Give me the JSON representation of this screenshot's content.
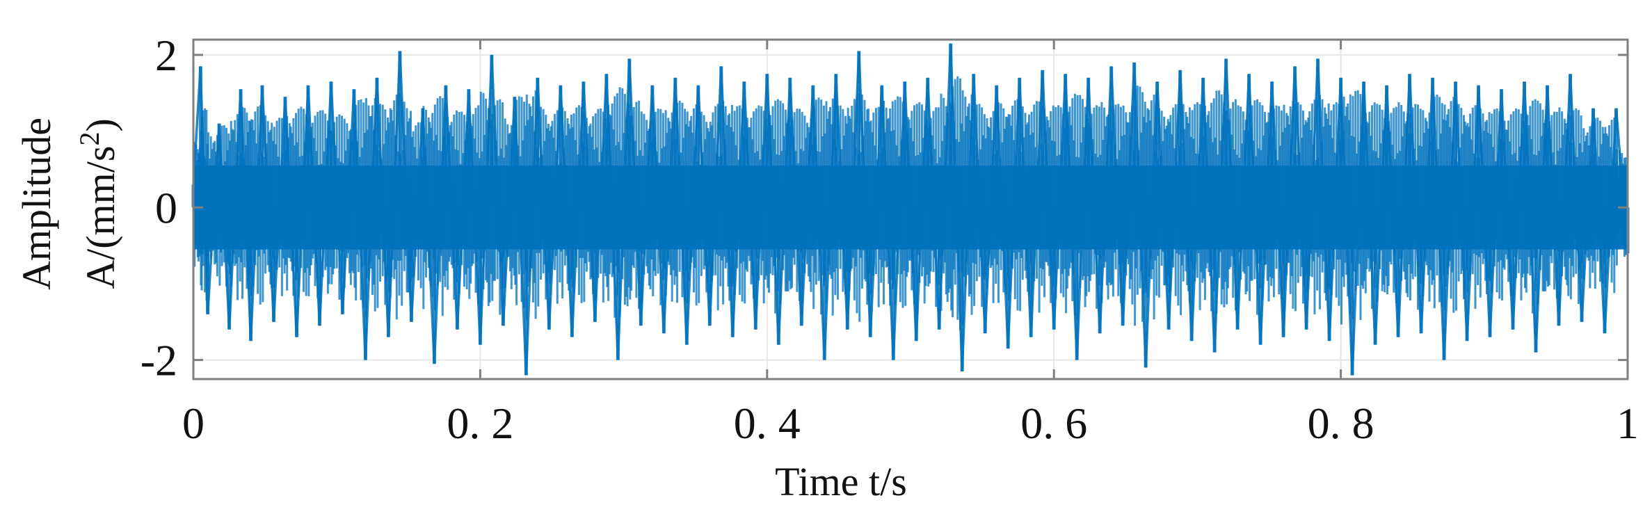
{
  "chart_data": {
    "type": "line",
    "title": "",
    "xlabel": "Time t/s",
    "ylabel_line1": "Amplitude",
    "ylabel_line2_prefix": "A/(mm/s",
    "ylabel_line2_sup": "2",
    "ylabel_line2_suffix": ")",
    "xlim": [
      0,
      1
    ],
    "ylim": [
      -2.25,
      2.2
    ],
    "x_ticks": [
      {
        "value": 0,
        "label": "0"
      },
      {
        "value": 0.2,
        "label": "0. 2"
      },
      {
        "value": 0.4,
        "label": "0. 4"
      },
      {
        "value": 0.6,
        "label": "0. 6"
      },
      {
        "value": 0.8,
        "label": "0. 8"
      },
      {
        "value": 1,
        "label": "1"
      }
    ],
    "y_ticks": [
      {
        "value": -2,
        "label": "-2"
      },
      {
        "value": 0,
        "label": "0"
      },
      {
        "value": 2,
        "label": "2"
      }
    ],
    "grid": true,
    "legend": "none",
    "series": [
      {
        "color": "#0072BD",
        "description_in_data_units": "vibration acceleration signal oscillating around 0 with impulsive peaks reaching about ±2.1",
        "points": [
          [
            0.0,
            0.3
          ],
          [
            0.005,
            1.85
          ],
          [
            0.01,
            -1.4
          ],
          [
            0.018,
            1.1
          ],
          [
            0.025,
            -1.6
          ],
          [
            0.033,
            1.55
          ],
          [
            0.04,
            -1.75
          ],
          [
            0.048,
            1.6
          ],
          [
            0.056,
            -1.5
          ],
          [
            0.064,
            1.45
          ],
          [
            0.072,
            -1.7
          ],
          [
            0.08,
            1.6
          ],
          [
            0.088,
            -1.55
          ],
          [
            0.096,
            1.65
          ],
          [
            0.104,
            -1.4
          ],
          [
            0.112,
            1.55
          ],
          [
            0.12,
            -2.0
          ],
          [
            0.128,
            1.7
          ],
          [
            0.136,
            -1.7
          ],
          [
            0.144,
            2.05
          ],
          [
            0.152,
            -1.5
          ],
          [
            0.16,
            1.3
          ],
          [
            0.168,
            -2.05
          ],
          [
            0.176,
            1.6
          ],
          [
            0.184,
            -1.6
          ],
          [
            0.192,
            1.55
          ],
          [
            0.2,
            -1.8
          ],
          [
            0.208,
            2.0
          ],
          [
            0.216,
            -1.55
          ],
          [
            0.224,
            1.45
          ],
          [
            0.232,
            -2.2
          ],
          [
            0.24,
            1.7
          ],
          [
            0.248,
            -1.6
          ],
          [
            0.256,
            1.6
          ],
          [
            0.264,
            -1.7
          ],
          [
            0.272,
            1.65
          ],
          [
            0.28,
            -1.5
          ],
          [
            0.288,
            1.75
          ],
          [
            0.296,
            -2.0
          ],
          [
            0.304,
            1.95
          ],
          [
            0.312,
            -1.55
          ],
          [
            0.32,
            1.6
          ],
          [
            0.328,
            -1.65
          ],
          [
            0.336,
            1.7
          ],
          [
            0.344,
            -1.8
          ],
          [
            0.352,
            1.6
          ],
          [
            0.36,
            -1.55
          ],
          [
            0.368,
            1.85
          ],
          [
            0.376,
            -1.7
          ],
          [
            0.384,
            1.65
          ],
          [
            0.392,
            -1.6
          ],
          [
            0.4,
            1.75
          ],
          [
            0.408,
            -1.8
          ],
          [
            0.416,
            1.7
          ],
          [
            0.424,
            -1.55
          ],
          [
            0.432,
            1.6
          ],
          [
            0.44,
            -2.0
          ],
          [
            0.448,
            1.75
          ],
          [
            0.456,
            -1.6
          ],
          [
            0.464,
            2.05
          ],
          [
            0.472,
            -1.7
          ],
          [
            0.48,
            1.6
          ],
          [
            0.488,
            -2.0
          ],
          [
            0.496,
            1.65
          ],
          [
            0.504,
            -1.75
          ],
          [
            0.512,
            1.7
          ],
          [
            0.52,
            -1.6
          ],
          [
            0.528,
            2.15
          ],
          [
            0.536,
            -2.15
          ],
          [
            0.544,
            1.75
          ],
          [
            0.552,
            -1.65
          ],
          [
            0.56,
            1.6
          ],
          [
            0.568,
            -1.85
          ],
          [
            0.576,
            1.7
          ],
          [
            0.584,
            -1.7
          ],
          [
            0.592,
            1.8
          ],
          [
            0.6,
            -1.6
          ],
          [
            0.608,
            1.75
          ],
          [
            0.616,
            -2.0
          ],
          [
            0.624,
            1.7
          ],
          [
            0.632,
            -1.65
          ],
          [
            0.64,
            1.85
          ],
          [
            0.648,
            -1.55
          ],
          [
            0.656,
            1.9
          ],
          [
            0.664,
            -2.1
          ],
          [
            0.672,
            1.65
          ],
          [
            0.68,
            -1.6
          ],
          [
            0.688,
            1.8
          ],
          [
            0.696,
            -1.75
          ],
          [
            0.704,
            1.7
          ],
          [
            0.712,
            -1.9
          ],
          [
            0.72,
            1.95
          ],
          [
            0.728,
            -1.6
          ],
          [
            0.736,
            1.75
          ],
          [
            0.744,
            -1.8
          ],
          [
            0.752,
            1.65
          ],
          [
            0.76,
            -1.7
          ],
          [
            0.768,
            1.85
          ],
          [
            0.776,
            -1.6
          ],
          [
            0.784,
            1.95
          ],
          [
            0.792,
            -1.75
          ],
          [
            0.8,
            1.7
          ],
          [
            0.808,
            -2.2
          ],
          [
            0.816,
            1.65
          ],
          [
            0.824,
            -1.8
          ],
          [
            0.832,
            1.6
          ],
          [
            0.84,
            -1.7
          ],
          [
            0.848,
            1.75
          ],
          [
            0.856,
            -1.65
          ],
          [
            0.864,
            1.7
          ],
          [
            0.872,
            -2.0
          ],
          [
            0.88,
            1.65
          ],
          [
            0.888,
            -1.75
          ],
          [
            0.896,
            1.6
          ],
          [
            0.904,
            -1.7
          ],
          [
            0.912,
            1.55
          ],
          [
            0.92,
            -1.6
          ],
          [
            0.928,
            1.65
          ],
          [
            0.936,
            -1.9
          ],
          [
            0.944,
            1.6
          ],
          [
            0.952,
            -1.55
          ],
          [
            0.96,
            1.75
          ],
          [
            0.968,
            -1.5
          ],
          [
            0.976,
            1.3
          ],
          [
            0.984,
            -1.65
          ],
          [
            0.992,
            1.3
          ],
          [
            1.0,
            -0.6
          ]
        ]
      }
    ]
  }
}
